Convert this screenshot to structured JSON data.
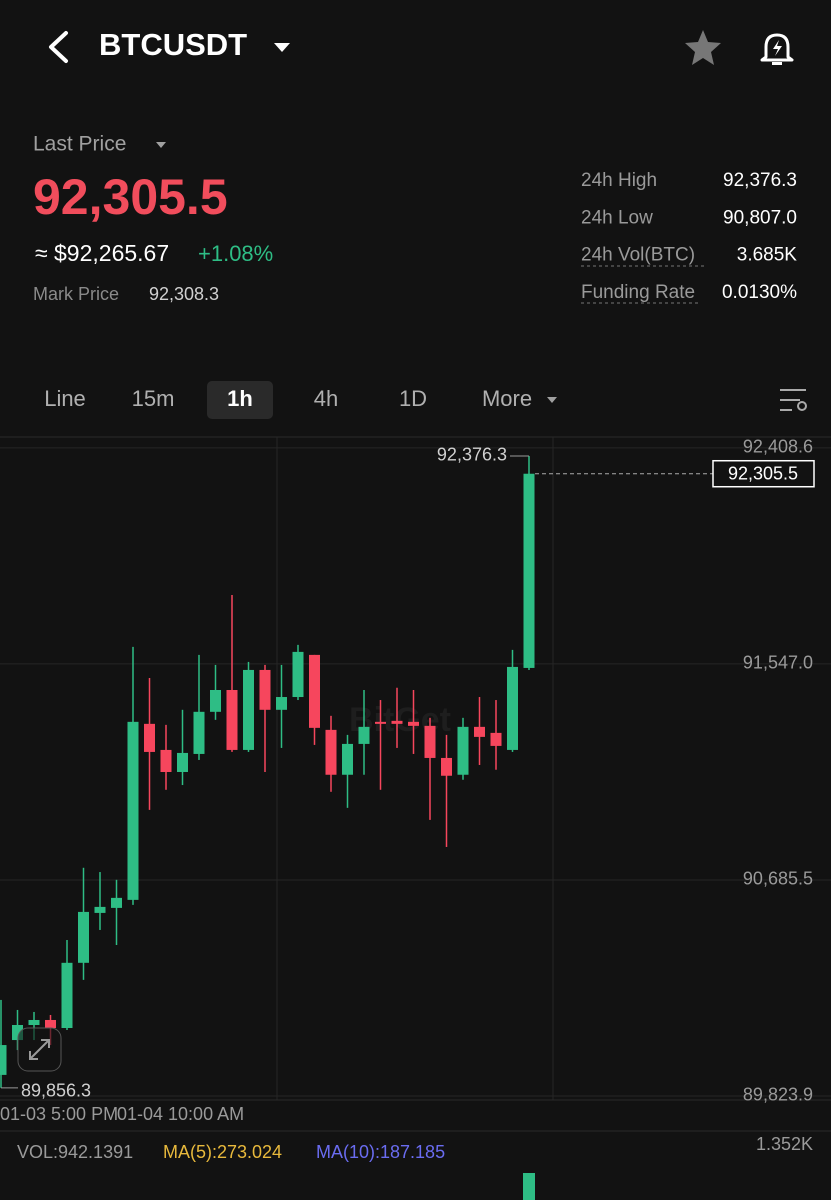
{
  "header": {
    "symbol": "BTCUSDT"
  },
  "ticker": {
    "last_price_label": "Last Price",
    "last_price": "92,305.5",
    "usd_price": "≈ $92,265.67",
    "change": "+1.08%",
    "mark_price_label": "Mark Price",
    "mark_price": "92,308.3",
    "stats": [
      {
        "label": "24h High",
        "value": "92,376.3"
      },
      {
        "label": "24h Low",
        "value": "90,807.0"
      },
      {
        "label": "24h Vol(BTC)",
        "value": "3.685K"
      },
      {
        "label": "Funding Rate",
        "value": "0.0130%"
      }
    ]
  },
  "tabs": {
    "items": [
      "Line",
      "15m",
      "1h",
      "4h",
      "1D",
      "More"
    ],
    "active": 2
  },
  "chart_data": {
    "type": "candlestick",
    "x_labels": [
      "01-03 5:00 PM",
      "01-04 10:00 AM"
    ],
    "open": [
      89908,
      90047,
      90107,
      90127,
      90095,
      90355,
      90554,
      90574,
      90606,
      91308,
      91204,
      91116,
      91188,
      91356,
      91443,
      91204,
      91523,
      91364,
      91415,
      91583,
      91284,
      91105,
      91228,
      91316,
      91320,
      91316,
      91300,
      91172,
      91105,
      91296,
      91272,
      91204,
      91531
    ],
    "high": [
      90207,
      90167,
      90159,
      90147,
      90446,
      90734,
      90717,
      90686,
      91615,
      91491,
      91304,
      91364,
      91583,
      91543,
      91822,
      91555,
      91543,
      91543,
      91623,
      91583,
      91340,
      91264,
      91443,
      91403,
      91452,
      91443,
      91332,
      91264,
      91332,
      91415,
      91403,
      91603,
      92376.3
    ],
    "low": [
      89856.3,
      90007,
      90047,
      90027,
      90087,
      90287,
      90486,
      90426,
      90586,
      90965,
      91045,
      91064,
      91164,
      91324,
      91196,
      91196,
      91116,
      91212,
      91403,
      91224,
      91037,
      90973,
      91105,
      91045,
      91212,
      91188,
      90925,
      90817,
      91085,
      91144,
      91125,
      91196,
      91523
    ],
    "close": [
      90027,
      90107,
      90127,
      90095,
      90355,
      90558,
      90578,
      90614,
      91316,
      91196,
      91116,
      91192,
      91356,
      91443,
      91204,
      91523,
      91364,
      91415,
      91595,
      91292,
      91105,
      91228,
      91296,
      91308,
      91308,
      91300,
      91172,
      91101,
      91296,
      91256,
      91220,
      91535,
      92305.5
    ],
    "ylim": [
      89772,
      92448
    ],
    "yticks": [
      {
        "value": 92408.6,
        "label": "92,408.6"
      },
      {
        "value": 91547.0,
        "label": "91,547.0"
      },
      {
        "value": 90685.5,
        "label": "90,685.5"
      },
      {
        "value": 89823.9,
        "label": "89,823.9"
      }
    ],
    "grid": true,
    "up_color": "#2ebd85",
    "down_color": "#f6465d",
    "high_label": "92,376.3",
    "low_label": "89,856.3",
    "last_price_label": "92,305.5",
    "volume": {
      "label": "VOL:942.1391",
      "ma5": "MA(5):273.024",
      "ma10": "MA(10):187.185",
      "max_label": "1.352K"
    }
  }
}
